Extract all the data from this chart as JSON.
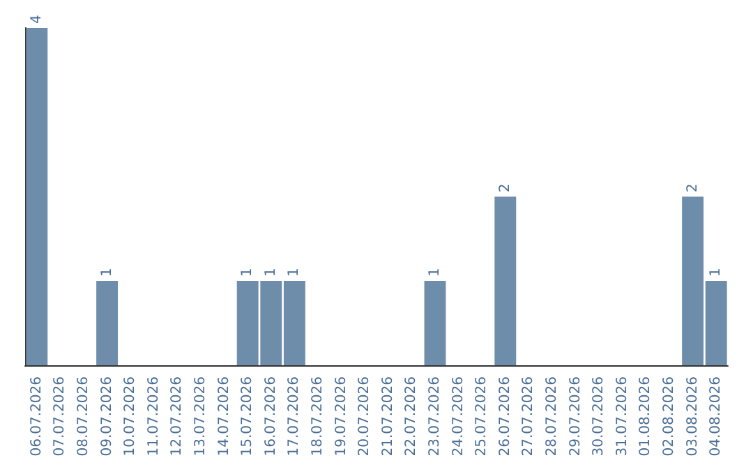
{
  "chart_data": {
    "type": "bar",
    "categories": [
      "06.07.2026",
      "07.07.2026",
      "08.07.2026",
      "09.07.2026",
      "10.07.2026",
      "11.07.2026",
      "12.07.2026",
      "13.07.2026",
      "14.07.2026",
      "15.07.2026",
      "16.07.2026",
      "17.07.2026",
      "18.07.2026",
      "19.07.2026",
      "20.07.2026",
      "21.07.2026",
      "22.07.2026",
      "23.07.2026",
      "24.07.2026",
      "25.07.2026",
      "26.07.2026",
      "27.07.2026",
      "28.07.2026",
      "29.07.2026",
      "30.07.2026",
      "31.07.2026",
      "01.08.2026",
      "02.08.2026",
      "03.08.2026",
      "04.08.2026"
    ],
    "values": [
      4,
      0,
      0,
      1,
      0,
      0,
      0,
      0,
      0,
      1,
      1,
      1,
      0,
      0,
      0,
      0,
      0,
      1,
      0,
      0,
      2,
      0,
      0,
      0,
      0,
      0,
      0,
      0,
      2,
      1
    ],
    "value_labels": [
      "4",
      null,
      null,
      "1",
      null,
      null,
      null,
      null,
      null,
      "1",
      "1",
      "1",
      null,
      null,
      null,
      null,
      null,
      "1",
      null,
      null,
      "2",
      null,
      null,
      null,
      null,
      null,
      null,
      null,
      "2",
      "1"
    ],
    "color": "#6e8daa"
  }
}
